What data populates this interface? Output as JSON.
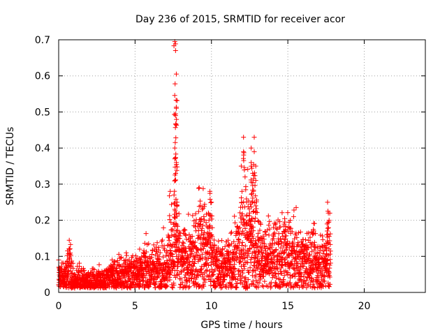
{
  "chart_data": {
    "type": "scatter",
    "title": "Day 236 of 2015, SRMTID for receiver acor",
    "xlabel": "GPS time / hours",
    "ylabel": "SRMTID / TECUs",
    "xlim": [
      0,
      24
    ],
    "ylim": [
      0,
      0.7
    ],
    "xticks": [
      0,
      5,
      10,
      15,
      20
    ],
    "xtick_labels": [
      "0",
      "5",
      "10",
      "15",
      "20"
    ],
    "yticks": [
      0,
      0.1,
      0.2,
      0.3,
      0.4,
      0.5,
      0.6,
      0.7
    ],
    "ytick_labels": [
      "0",
      "0.1",
      "0.2",
      "0.3",
      "0.4",
      "0.5",
      "0.6",
      "0.7"
    ],
    "grid": true,
    "marker": "+",
    "series": [
      {
        "name": "SRMTID",
        "color": "#ff0000",
        "trend": [
          [
            0.0,
            0.035
          ],
          [
            0.5,
            0.04
          ],
          [
            0.7,
            0.07
          ],
          [
            1.0,
            0.035
          ],
          [
            2.0,
            0.03
          ],
          [
            3.0,
            0.035
          ],
          [
            3.5,
            0.04
          ],
          [
            4.0,
            0.045
          ],
          [
            5.0,
            0.05
          ],
          [
            5.5,
            0.065
          ],
          [
            6.0,
            0.06
          ],
          [
            7.0,
            0.07
          ],
          [
            7.3,
            0.1
          ],
          [
            7.6,
            0.12
          ],
          [
            8.0,
            0.08
          ],
          [
            8.5,
            0.085
          ],
          [
            9.0,
            0.1
          ],
          [
            9.5,
            0.13
          ],
          [
            10.0,
            0.1
          ],
          [
            10.5,
            0.06
          ],
          [
            11.0,
            0.07
          ],
          [
            11.5,
            0.1
          ],
          [
            12.0,
            0.11
          ],
          [
            12.5,
            0.14
          ],
          [
            13.0,
            0.1
          ],
          [
            13.5,
            0.09
          ],
          [
            14.0,
            0.1
          ],
          [
            14.5,
            0.09
          ],
          [
            15.0,
            0.1
          ],
          [
            15.5,
            0.09
          ],
          [
            16.0,
            0.08
          ],
          [
            16.5,
            0.085
          ],
          [
            17.0,
            0.07
          ],
          [
            17.5,
            0.08
          ],
          [
            17.8,
            0.1
          ]
        ],
        "spikes": [
          [
            7.6,
            0.695
          ],
          [
            7.65,
            0.67
          ],
          [
            7.7,
            0.605
          ],
          [
            7.62,
            0.578
          ],
          [
            7.7,
            0.51
          ],
          [
            7.65,
            0.49
          ],
          [
            7.6,
            0.4
          ],
          [
            7.6,
            0.37
          ],
          [
            7.7,
            0.36
          ],
          [
            7.62,
            0.31
          ],
          [
            7.3,
            0.28
          ],
          [
            7.55,
            0.27
          ],
          [
            7.75,
            0.25
          ],
          [
            7.6,
            0.23
          ],
          [
            7.7,
            0.22
          ],
          [
            9.2,
            0.29
          ],
          [
            9.3,
            0.24
          ],
          [
            9.9,
            0.28
          ],
          [
            10.0,
            0.25
          ],
          [
            9.8,
            0.22
          ],
          [
            9.5,
            0.21
          ],
          [
            12.1,
            0.43
          ],
          [
            12.1,
            0.39
          ],
          [
            11.95,
            0.35
          ],
          [
            12.2,
            0.32
          ],
          [
            12.0,
            0.28
          ],
          [
            12.3,
            0.25
          ],
          [
            12.5,
            0.22
          ],
          [
            12.6,
            0.2
          ],
          [
            12.6,
            0.4
          ],
          [
            12.8,
            0.43
          ],
          [
            12.6,
            0.36
          ],
          [
            12.8,
            0.39
          ],
          [
            12.9,
            0.35
          ],
          [
            12.7,
            0.33
          ],
          [
            12.9,
            0.31
          ],
          [
            12.75,
            0.28
          ],
          [
            12.65,
            0.25
          ],
          [
            12.9,
            0.24
          ],
          [
            14.8,
            0.195
          ],
          [
            17.6,
            0.25
          ],
          [
            17.65,
            0.22
          ],
          [
            17.7,
            0.2
          ],
          [
            17.55,
            0.16
          ],
          [
            0.0,
            0.09
          ],
          [
            0.7,
            0.12
          ],
          [
            3.5,
            0.09
          ],
          [
            5.3,
            0.12
          ],
          [
            12.3,
            0.015
          ]
        ],
        "spread_scale": 0.55,
        "point_count": 2600
      }
    ]
  }
}
